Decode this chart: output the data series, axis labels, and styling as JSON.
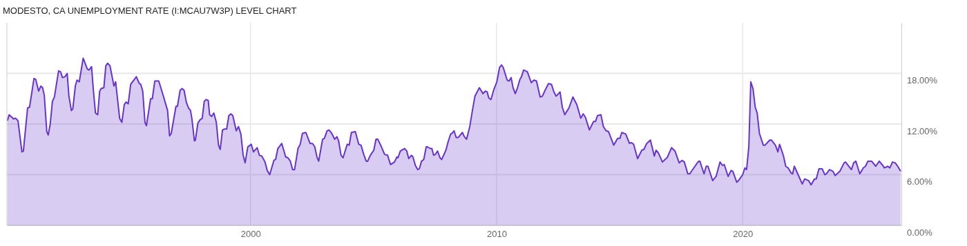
{
  "chart_data": {
    "type": "area",
    "title": "MODESTO, CA UNEMPLOYMENT RATE (I:MCAU7W3P) LEVEL CHART",
    "xlim": [
      1990.1,
      2026.45
    ],
    "xticks": [
      2000,
      2010,
      2020
    ],
    "ylim": [
      0,
      24
    ],
    "yticks": [
      {
        "value": 0,
        "label": "0.00%"
      },
      {
        "value": 6,
        "label": "6.00%"
      },
      {
        "value": 12,
        "label": "12.00%"
      },
      {
        "value": 18,
        "label": "18.00%"
      }
    ],
    "grid": true,
    "series": [
      {
        "color": "#6633cc",
        "x": [
          1990.12,
          1990.19,
          1990.38,
          1990.45,
          1990.55,
          1990.71,
          1990.77,
          1990.94,
          1991.02,
          1991.2,
          1991.27,
          1991.39,
          1991.48,
          1991.55,
          1991.62,
          1991.72,
          1991.78,
          1991.86,
          1991.95,
          1992.03,
          1992.2,
          1992.28,
          1992.36,
          1992.46,
          1992.55,
          1992.62,
          1992.72,
          1992.78,
          1992.88,
          1992.95,
          1993.04,
          1993.2,
          1993.37,
          1993.44,
          1993.54,
          1993.62,
          1993.7,
          1993.79,
          1993.87,
          1993.93,
          1994.04,
          1994.12,
          1994.19,
          1994.29,
          1994.45,
          1994.52,
          1994.68,
          1994.77,
          1994.87,
          1994.94,
          1995.03,
          1995.13,
          1995.36,
          1995.48,
          1995.54,
          1995.62,
          1995.71,
          1995.77,
          1995.94,
          1996.01,
          1996.11,
          1996.27,
          1996.46,
          1996.55,
          1996.63,
          1996.71,
          1996.78,
          1996.97,
          1997.03,
          1997.14,
          1997.22,
          1997.3,
          1997.39,
          1997.48,
          1997.56,
          1997.62,
          1997.72,
          1997.76,
          1997.86,
          1997.95,
          1998.04,
          1998.12,
          1998.2,
          1998.28,
          1998.34,
          1998.42,
          1998.51,
          1998.61,
          1998.7,
          1998.77,
          1998.86,
          1998.93,
          1999.03,
          1999.12,
          1999.2,
          1999.28,
          1999.42,
          1999.51,
          1999.61,
          1999.7,
          1999.78,
          1999.89,
          2000.03,
          2000.12,
          2000.27,
          2000.36,
          2000.46,
          2000.59,
          2000.68,
          2000.78,
          2000.95,
          2001.02,
          2001.11,
          2001.27,
          2001.43,
          2001.52,
          2001.62,
          2001.71,
          2001.79,
          2001.93,
          2002.02,
          2002.11,
          2002.25,
          2002.42,
          2002.52,
          2002.61,
          2002.7,
          2002.77,
          2002.93,
          2003.0,
          2003.11,
          2003.19,
          2003.3,
          2003.42,
          2003.51,
          2003.58,
          2003.68,
          2003.76,
          2003.93,
          2004.01,
          2004.1,
          2004.26,
          2004.4,
          2004.49,
          2004.59,
          2004.7,
          2004.76,
          2004.87,
          2005.01,
          2005.1,
          2005.17,
          2005.29,
          2005.45,
          2005.57,
          2005.69,
          2005.85,
          2005.95,
          2005.99,
          2006.09,
          2006.26,
          2006.35,
          2006.43,
          2006.54,
          2006.6,
          2006.7,
          2006.79,
          2006.86,
          2006.95,
          2007.04,
          2007.14,
          2007.19,
          2007.3,
          2007.37,
          2007.44,
          2007.51,
          2007.6,
          2007.7,
          2007.77,
          2007.94,
          2008.03,
          2008.13,
          2008.19,
          2008.27,
          2008.36,
          2008.44,
          2008.61,
          2008.69,
          2008.78,
          2008.91,
          2009.0,
          2009.12,
          2009.3,
          2009.45,
          2009.54,
          2009.62,
          2009.68,
          2009.77,
          2009.89,
          2010.01,
          2010.12,
          2010.2,
          2010.27,
          2010.43,
          2010.51,
          2010.59,
          2010.67,
          2010.76,
          2010.85,
          2010.95,
          2011.01,
          2011.1,
          2011.25,
          2011.41,
          2011.52,
          2011.62,
          2011.77,
          2011.86,
          2011.97,
          2012.11,
          2012.23,
          2012.33,
          2012.42,
          2012.58,
          2012.67,
          2012.77,
          2012.83,
          2012.94,
          2013.1,
          2013.26,
          2013.42,
          2013.52,
          2013.61,
          2013.77,
          2013.94,
          2014.02,
          2014.1,
          2014.24,
          2014.34,
          2014.45,
          2014.55,
          2014.76,
          2014.92,
          2015.01,
          2015.09,
          2015.25,
          2015.4,
          2015.48,
          2015.57,
          2015.73,
          2015.9,
          2015.99,
          2016.1,
          2016.25,
          2016.41,
          2016.48,
          2016.57,
          2016.74,
          2016.88,
          2016.93,
          2017.11,
          2017.25,
          2017.42,
          2017.54,
          2017.63,
          2017.77,
          2017.85,
          2018.06,
          2018.21,
          2018.26,
          2018.43,
          2018.52,
          2018.59,
          2018.78,
          2018.92,
          2019.08,
          2019.18,
          2019.25,
          2019.41,
          2019.53,
          2019.6,
          2019.76,
          2019.83,
          2020.0,
          2020.09,
          2020.16,
          2020.25,
          2020.33,
          2020.42,
          2020.51,
          2020.59,
          2020.68,
          2020.84,
          2020.91,
          2021.1,
          2021.17,
          2021.33,
          2021.43,
          2021.5,
          2021.66,
          2021.75,
          2021.85,
          2021.97,
          2022.03,
          2022.1,
          2022.27,
          2022.42,
          2022.52,
          2022.68,
          2022.78,
          2022.92,
          2022.99,
          2023.1,
          2023.23,
          2023.34,
          2023.4,
          2023.53,
          2023.67,
          2023.76,
          2023.95,
          2024.12,
          2024.18,
          2024.42,
          2024.51,
          2024.6,
          2024.76,
          2024.9,
          2024.99,
          2025.09,
          2025.24,
          2025.41,
          2025.55,
          2025.72,
          2025.76,
          2025.9,
          2025.98,
          2026.09,
          2026.2,
          2026.3,
          2026.42
        ],
        "values": [
          12.4,
          13.1,
          12.6,
          12.7,
          12.4,
          8.7,
          8.8,
          13.9,
          14.0,
          17.4,
          17.3,
          15.9,
          16.5,
          16.3,
          15.4,
          11.1,
          10.7,
          12.0,
          14.7,
          15.2,
          18.3,
          18.2,
          17.5,
          17.6,
          18.0,
          15.3,
          13.6,
          13.8,
          16.5,
          17.2,
          17.0,
          19.8,
          18.5,
          18.4,
          18.8,
          15.8,
          13.3,
          13.1,
          15.9,
          16.2,
          16.3,
          18.9,
          19.2,
          18.9,
          16.5,
          17.0,
          12.7,
          12.2,
          14.3,
          14.6,
          14.4,
          16.7,
          17.6,
          16.8,
          16.7,
          15.9,
          12.2,
          11.8,
          15.0,
          15.0,
          17.1,
          17.1,
          15.3,
          14.4,
          13.6,
          10.6,
          10.9,
          14.1,
          14.1,
          16.0,
          16.2,
          16.0,
          14.6,
          13.9,
          13.6,
          12.6,
          10.0,
          10.1,
          12.1,
          12.5,
          12.7,
          14.7,
          14.9,
          14.8,
          13.1,
          12.9,
          13.3,
          12.2,
          9.5,
          9.0,
          11.3,
          11.4,
          11.4,
          13.0,
          13.2,
          13.0,
          11.2,
          11.7,
          10.8,
          8.3,
          7.4,
          9.3,
          9.6,
          8.7,
          9.2,
          8.3,
          8.2,
          7.5,
          6.5,
          6.0,
          7.7,
          7.8,
          9.1,
          9.7,
          8.1,
          8.0,
          7.6,
          6.6,
          6.6,
          9.1,
          9.6,
          10.9,
          11.0,
          9.7,
          9.7,
          9.3,
          8.1,
          7.6,
          10.2,
          10.3,
          11.2,
          11.3,
          10.9,
          10.2,
          10.5,
          10.0,
          8.3,
          8.0,
          9.6,
          9.5,
          11.0,
          11.1,
          9.6,
          9.5,
          8.5,
          7.6,
          7.6,
          8.3,
          8.9,
          10.2,
          10.2,
          9.5,
          8.4,
          8.3,
          7.2,
          7.5,
          8.1,
          8.0,
          8.8,
          9.1,
          8.8,
          7.9,
          8.3,
          8.1,
          7.1,
          6.6,
          6.7,
          7.6,
          7.8,
          9.3,
          9.3,
          9.1,
          9.1,
          8.3,
          8.4,
          8.8,
          8.0,
          7.8,
          8.9,
          9.9,
          10.8,
          10.9,
          11.2,
          10.4,
          10.4,
          11.0,
          10.5,
          10.2,
          11.7,
          13.3,
          15.3,
          16.3,
          15.6,
          15.9,
          15.8,
          15.1,
          14.9,
          16.1,
          17.0,
          18.7,
          19.0,
          18.7,
          17.2,
          17.1,
          17.5,
          16.3,
          15.6,
          16.3,
          17.3,
          17.6,
          18.4,
          18.2,
          16.9,
          17.2,
          17.1,
          15.2,
          15.3,
          16.0,
          16.8,
          16.7,
          15.8,
          15.3,
          15.8,
          14.0,
          13.1,
          13.4,
          13.9,
          15.2,
          14.3,
          12.7,
          13.2,
          12.8,
          11.3,
          12.3,
          12.3,
          13.0,
          13.1,
          11.7,
          11.2,
          11.1,
          9.5,
          10.3,
          10.3,
          11.0,
          10.8,
          9.7,
          9.8,
          9.6,
          7.9,
          8.9,
          9.0,
          9.7,
          10.1,
          8.2,
          8.9,
          8.6,
          7.5,
          7.9,
          8.0,
          9.2,
          8.8,
          7.4,
          7.7,
          7.5,
          6.1,
          6.1,
          7.0,
          7.6,
          7.6,
          6.1,
          7.0,
          7.0,
          5.3,
          5.8,
          7.5,
          7.1,
          7.2,
          5.8,
          6.5,
          6.4,
          5.1,
          5.3,
          6.0,
          6.8,
          6.6,
          9.3,
          17.0,
          16.2,
          14.0,
          13.3,
          10.9,
          9.5,
          9.5,
          10.1,
          10.1,
          9.5,
          8.7,
          9.6,
          8.2,
          7.0,
          6.8,
          6.2,
          6.1,
          7.0,
          5.9,
          4.9,
          5.5,
          5.3,
          4.8,
          5.5,
          5.5,
          6.7,
          6.7,
          6.0,
          6.1,
          6.6,
          6.4,
          5.9,
          6.4,
          7.4,
          7.5,
          6.6,
          7.4,
          7.6,
          6.1,
          6.8,
          7.0,
          7.6,
          7.6,
          7.0,
          7.6,
          7.0,
          6.8,
          7.0,
          6.8,
          7.5,
          7.4,
          7.0,
          6.4
        ]
      }
    ]
  }
}
